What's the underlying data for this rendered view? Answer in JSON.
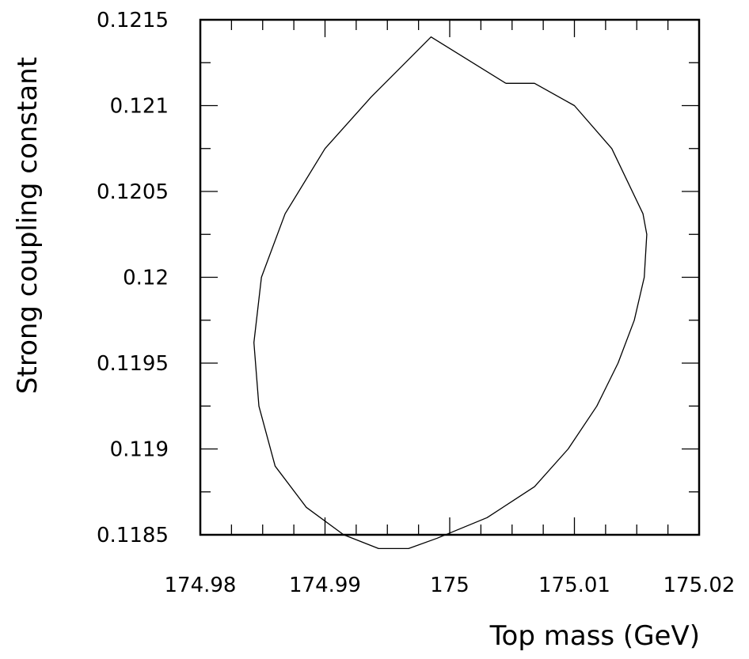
{
  "chart_data": {
    "type": "line",
    "title": "",
    "xlabel": "Top mass (GeV)",
    "ylabel": "Strong coupling constant",
    "xlim": [
      174.98,
      175.02
    ],
    "ylim": [
      0.1185,
      0.1215
    ],
    "x_tick_labels": [
      "174.98",
      "174.99",
      "175",
      "175.01",
      "175.02"
    ],
    "x_tick_values": [
      174.98,
      174.99,
      175.0,
      175.01,
      175.02
    ],
    "y_tick_labels": [
      "0.1185",
      "0.119",
      "0.1195",
      "0.12",
      "0.1205",
      "0.121",
      "0.1215"
    ],
    "y_tick_values": [
      0.1185,
      0.119,
      0.1195,
      0.12,
      0.1205,
      0.121,
      0.1215
    ],
    "grid": false,
    "line_color": "#000000",
    "series": [
      {
        "values": [
          [
            175.0045,
            0.12113
          ],
          [
            175.0068,
            0.12113
          ],
          [
            175.01,
            0.121
          ],
          [
            175.013,
            0.12075
          ],
          [
            175.0155,
            0.12037
          ],
          [
            175.0158,
            0.12025
          ],
          [
            175.0156,
            0.12
          ],
          [
            175.0148,
            0.11975
          ],
          [
            175.0135,
            0.1195
          ],
          [
            175.0118,
            0.11925
          ],
          [
            175.0095,
            0.119
          ],
          [
            175.0068,
            0.11878
          ],
          [
            175.003,
            0.1186
          ],
          [
            174.999,
            0.11848
          ],
          [
            174.9967,
            0.11842
          ],
          [
            174.9943,
            0.11842
          ],
          [
            174.9915,
            0.1185
          ],
          [
            174.9885,
            0.11866
          ],
          [
            174.986,
            0.1189
          ],
          [
            174.9847,
            0.11925
          ],
          [
            174.9843,
            0.11962
          ],
          [
            174.9849,
            0.12
          ],
          [
            174.9868,
            0.12037
          ],
          [
            174.99,
            0.12075
          ],
          [
            174.9937,
            0.12105
          ],
          [
            174.9985,
            0.1214
          ],
          [
            175.0045,
            0.12113
          ]
        ]
      }
    ]
  }
}
